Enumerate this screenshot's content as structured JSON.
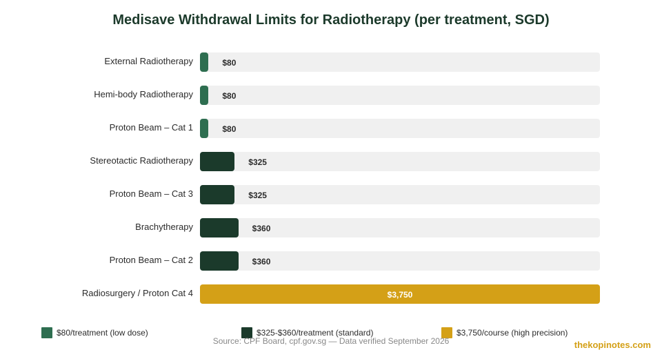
{
  "chart_data": {
    "type": "bar",
    "orientation": "horizontal",
    "title": "Medisave Withdrawal Limits for Radiotherapy (per treatment, SGD)",
    "categories": [
      "External Radiotherapy",
      "Hemi-body Radiotherapy",
      "Proton Beam – Cat 1",
      "Stereotactic Radiotherapy",
      "Proton Beam – Cat 3",
      "Brachytherapy",
      "Proton Beam – Cat 2",
      "Radiosurgery / Proton Cat 4"
    ],
    "values": [
      80,
      80,
      80,
      325,
      325,
      360,
      360,
      3750
    ],
    "value_labels": [
      "$80",
      "$80",
      "$80",
      "$325",
      "$325",
      "$360",
      "$360",
      "$3,750"
    ],
    "groups": [
      0,
      0,
      0,
      1,
      1,
      1,
      1,
      2
    ],
    "xlim": [
      0,
      3750
    ],
    "grid": false,
    "legend": {
      "position": "bottom",
      "entries": [
        {
          "label": "$80/treatment (low dose)",
          "color": "#2e6e50"
        },
        {
          "label": "$325-$360/treatment (standard)",
          "color": "#1b3a2b"
        },
        {
          "label": "$3,750/course (high precision)",
          "color": "#d4a017"
        }
      ]
    }
  },
  "colors": {
    "track": "#f0f0f0",
    "title": "#1c3a2b",
    "brand": "#d4a017"
  },
  "source": "Source: CPF Board, cpf.gov.sg — Data verified September 2026",
  "brand": "thekopinotes.com"
}
